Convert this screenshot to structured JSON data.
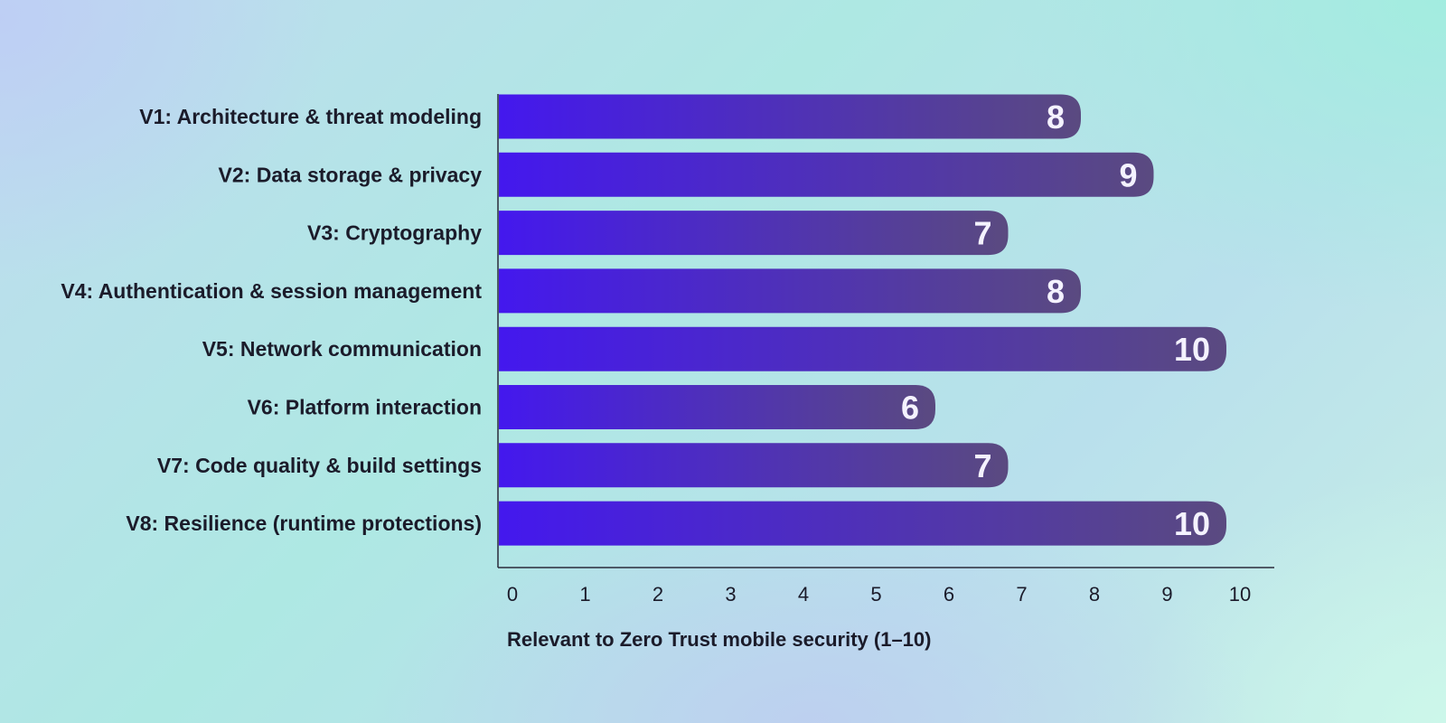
{
  "chart_data": {
    "type": "bar",
    "orientation": "horizontal",
    "categories": [
      "V1: Architecture & threat modeling",
      "V2: Data storage & privacy",
      "V3: Cryptography",
      "V4: Authentication & session management",
      "V5: Network communication",
      "V6: Platform interaction",
      "V7: Code quality & build settings",
      "V8: Resilience (runtime protections)"
    ],
    "values": [
      8,
      9,
      7,
      8,
      10,
      6,
      7,
      10
    ],
    "xlabel": "Relevant to Zero Trust mobile security (1–10)",
    "ylabel": "",
    "xlim": [
      0,
      10
    ],
    "xticks": [
      "0",
      "1",
      "2",
      "3",
      "4",
      "5",
      "6",
      "7",
      "8",
      "9",
      "10"
    ],
    "data_labels": true,
    "grid": false,
    "legend": "none",
    "colors": {
      "bar_start": "#4418ee",
      "bar_end": "#5a4a80",
      "value_text": "#f4f2ff",
      "axis": "#2a2a3a",
      "text": "#1b1b2a"
    }
  }
}
